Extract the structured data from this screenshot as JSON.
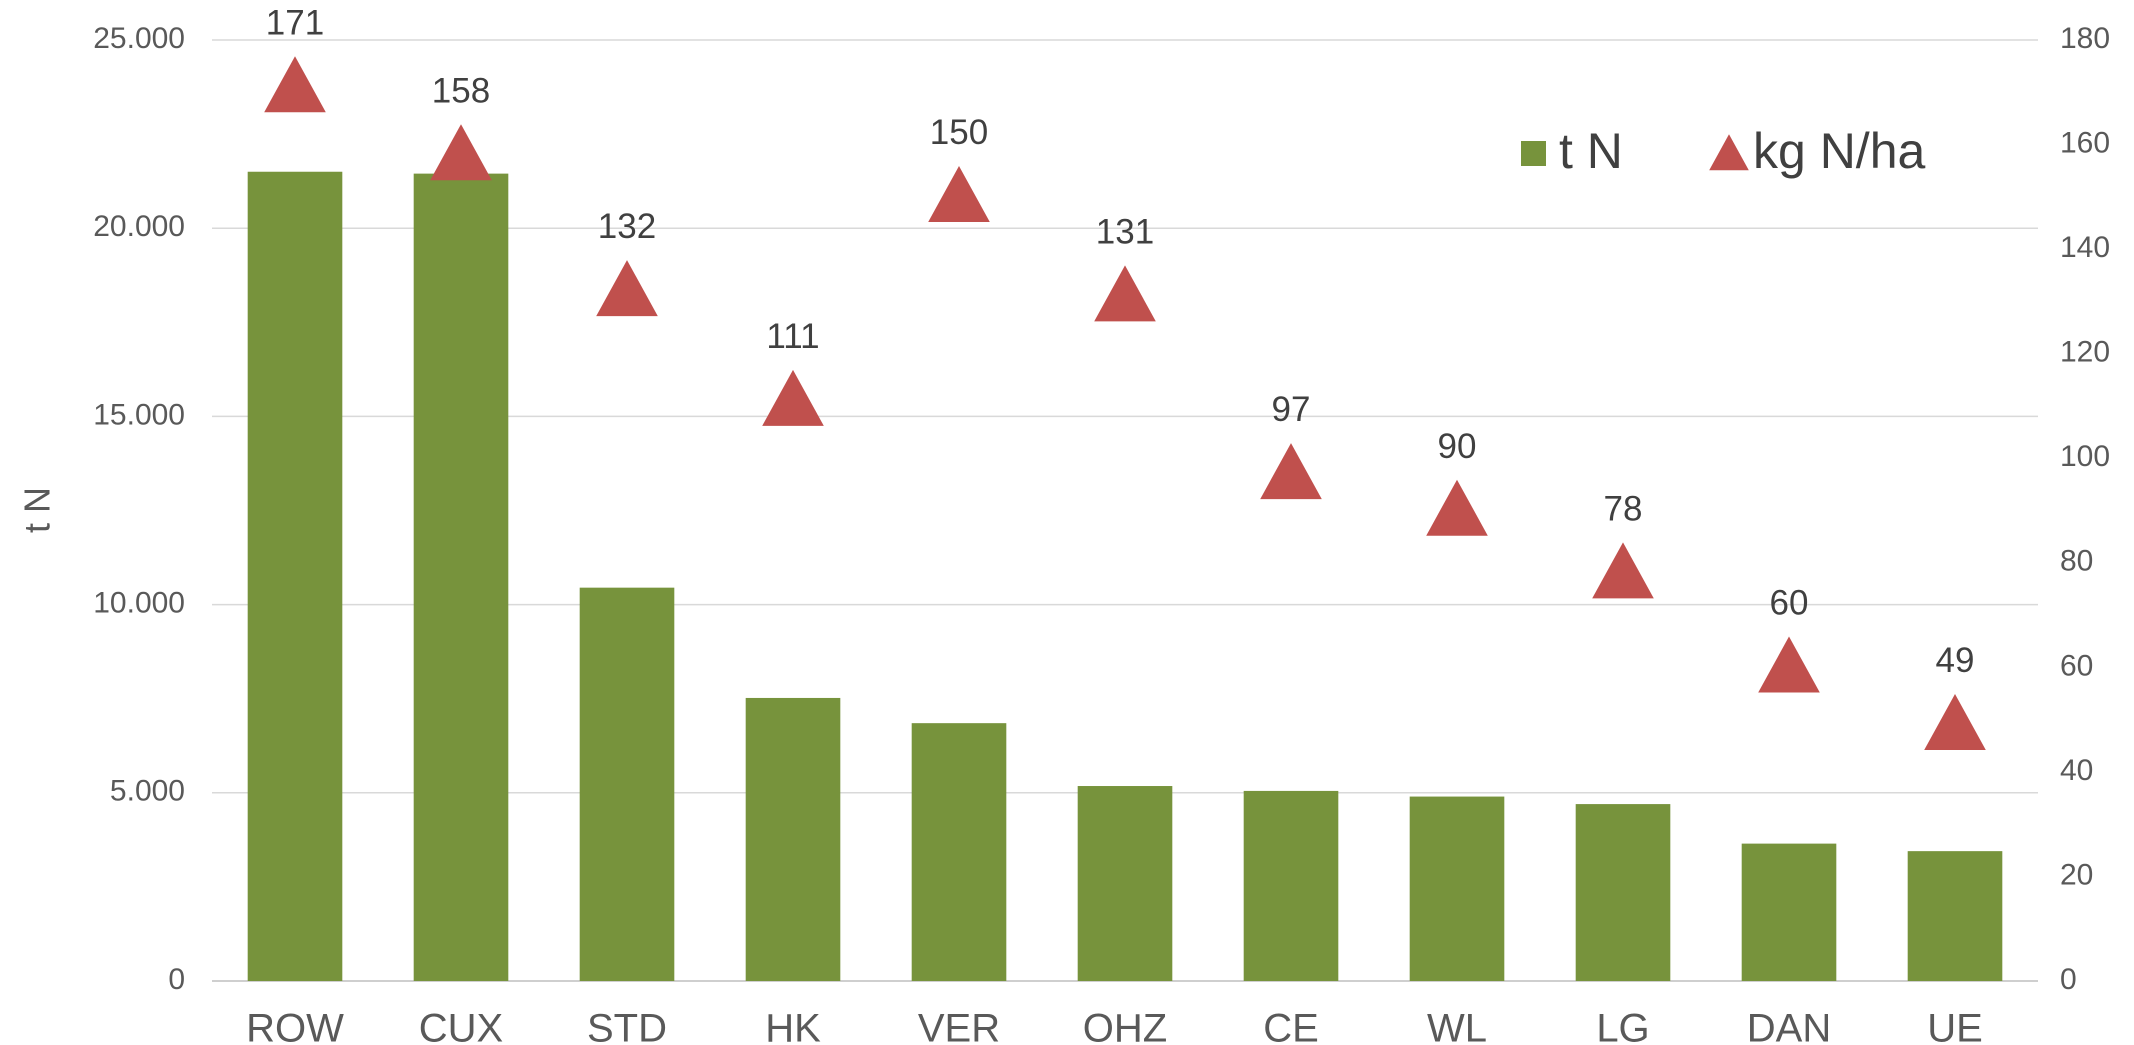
{
  "chart_data": {
    "type": "bar_triangle",
    "categories": [
      "ROW",
      "CUX",
      "STD",
      "HK",
      "VER",
      "OHZ",
      "CE",
      "WL",
      "LG",
      "DAN",
      "UE"
    ],
    "series": [
      {
        "name": "t N",
        "color": "#77933c",
        "type": "bar",
        "values": [
          21500,
          21450,
          10450,
          7520,
          6850,
          5180,
          5050,
          4900,
          4700,
          3650,
          3450
        ]
      },
      {
        "name": "kg N/ha",
        "color": "#c0504d",
        "type": "triangle",
        "axis": "y2",
        "values": [
          171,
          158,
          132,
          111,
          150,
          131,
          97,
          90,
          78,
          60,
          49
        ]
      }
    ],
    "ylabel": "t N",
    "ylim": [
      0,
      25000
    ],
    "yticks": [
      0,
      {
        "value": 5000,
        "label": "5.000"
      },
      {
        "value": 10000,
        "label": "10.000"
      },
      {
        "value": 15000,
        "label": "15.000"
      },
      {
        "value": 20000,
        "label": "20.000"
      },
      {
        "value": 25000,
        "label": "25.000"
      }
    ],
    "y2lim": [
      0,
      180
    ],
    "y2ticks": [
      0,
      20,
      40,
      60,
      80,
      100,
      120,
      140,
      160,
      180
    ],
    "grid": true,
    "legend": "top-right"
  }
}
